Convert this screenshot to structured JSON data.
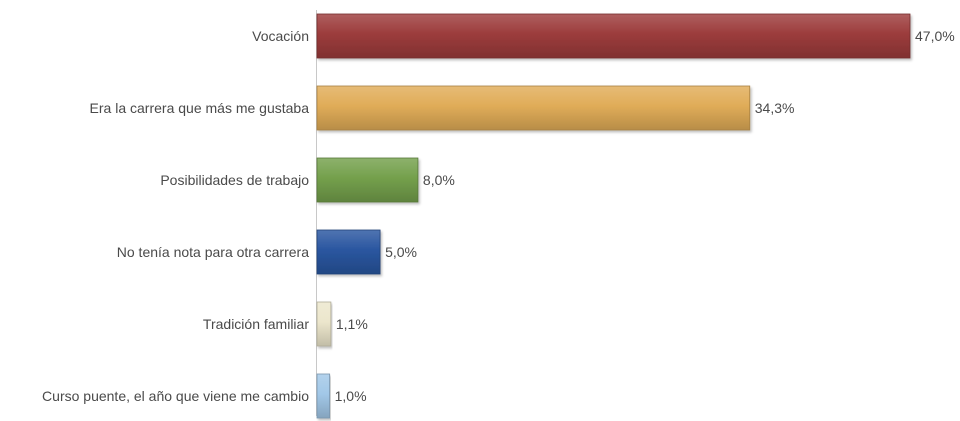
{
  "chart_data": {
    "type": "bar",
    "orientation": "horizontal",
    "categories": [
      "Vocación",
      "Era la carrera que más me gustaba",
      "Posibilidades de trabajo",
      "No tenía nota para otra carrera",
      "Tradición familiar",
      "Curso puente, el año que viene me cambio"
    ],
    "values": [
      47.0,
      34.3,
      8.0,
      5.0,
      1.1,
      1.0
    ],
    "value_labels": [
      "47,0%",
      "34,3%",
      "8,0%",
      "5,0%",
      "1,1%",
      "1,0%"
    ],
    "colors": [
      "#9c3c3c",
      "#e0ac58",
      "#74a04c",
      "#2a56a0",
      "#ece6cc",
      "#a2c8e8"
    ],
    "xlim": [
      0,
      47.0
    ],
    "grid": false,
    "legend": "none",
    "title": "",
    "xlabel": "",
    "ylabel": ""
  }
}
